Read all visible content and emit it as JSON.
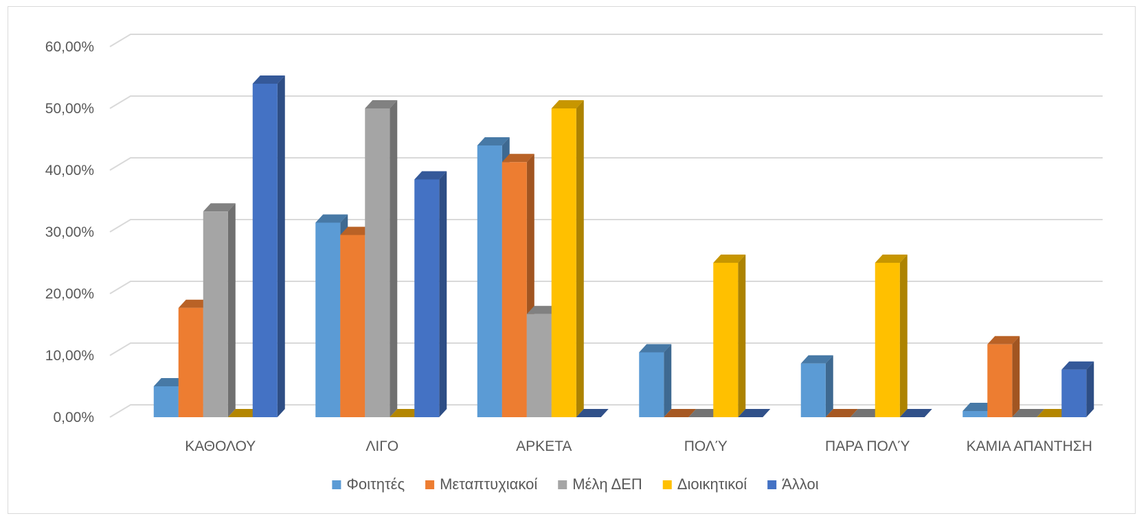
{
  "chart_data": {
    "type": "bar",
    "title": "",
    "xlabel": "",
    "ylabel": "",
    "ylim": [
      0,
      0.6
    ],
    "y_ticks": [
      0,
      0.1,
      0.2,
      0.3,
      0.4,
      0.5,
      0.6
    ],
    "y_tick_labels": [
      "0,00%",
      "10,00%",
      "20,00%",
      "30,00%",
      "40,00%",
      "50,00%",
      "60,00%"
    ],
    "grid": true,
    "legend_position": "bottom",
    "categories": [
      "ΚΑΘΟΛΟΥ",
      "ΛΙΓΟ",
      "ΑΡΚΕΤΑ",
      "ΠΟΛΎ",
      "ΠΑΡΑ ΠΟΛΎ",
      "ΚΑΜΙΑ ΑΠΑΝΤΗΣΗ"
    ],
    "series": [
      {
        "name": "Φοιτητές",
        "color": "#5b9bd5",
        "values": [
          0.05,
          0.315,
          0.44,
          0.105,
          0.087,
          0.01
        ]
      },
      {
        "name": "Μεταπτυχιακοί",
        "color": "#ed7d31",
        "values": [
          0.177,
          0.295,
          0.413,
          0.0,
          0.0,
          0.118
        ]
      },
      {
        "name": "Μέλη ΔΕΠ",
        "color": "#a5a5a5",
        "values": [
          0.333,
          0.5,
          0.167,
          0.0,
          0.0,
          0.0
        ]
      },
      {
        "name": "Διοικητικοί",
        "color": "#ffc000",
        "values": [
          0.0,
          0.0,
          0.5,
          0.25,
          0.25,
          0.0
        ]
      },
      {
        "name": "Άλλοι",
        "color": "#4472c4",
        "values": [
          0.54,
          0.385,
          0.0,
          0.0,
          0.0,
          0.077
        ]
      }
    ]
  }
}
